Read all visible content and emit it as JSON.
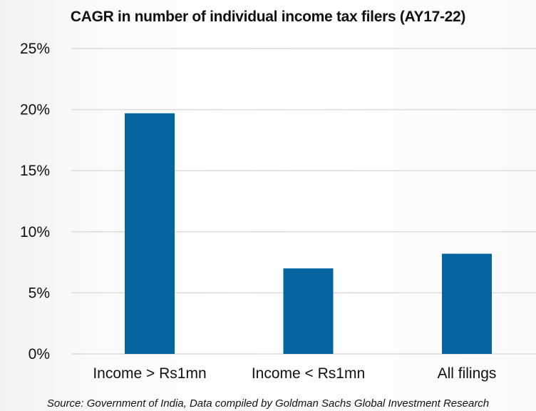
{
  "chart_data": {
    "type": "bar",
    "title": "CAGR in number of individual income tax filers (AY17-22)",
    "categories": [
      "Income > Rs1mn",
      "Income < Rs1mn",
      "All filings"
    ],
    "values": [
      19.7,
      7.0,
      8.2
    ],
    "unit": "%",
    "xlabel": "",
    "ylabel": "",
    "ylim": [
      0,
      25
    ],
    "yticks": [
      "0%",
      "5%",
      "10%",
      "15%",
      "20%",
      "25%"
    ],
    "grid": true,
    "bar_color": "#0565a0",
    "source": "Source: Government of India, Data compiled by Goldman Sachs Global Investment Research"
  }
}
